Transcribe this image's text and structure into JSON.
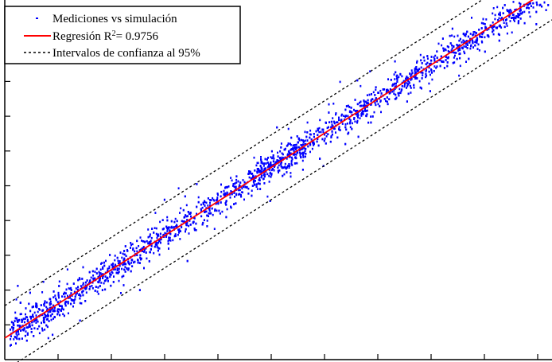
{
  "chart_data": {
    "type": "scatter",
    "title": "",
    "xlabel": "",
    "ylabel": "",
    "xlim": [
      0,
      1
    ],
    "ylim": [
      0,
      1
    ],
    "x_tick_count": 10,
    "y_tick_count": 10,
    "grid": false,
    "legend_position": "top-left",
    "series": [
      {
        "name": "Mediciones vs simulación",
        "marker": "point",
        "color": "#0000ff",
        "point_count": 3000,
        "points": []
      },
      {
        "name": "Regresión R² = 0.9756",
        "name_prefix": "Regresión R",
        "name_sup": "2",
        "name_suffix": "= 0.9756",
        "line_style": "solid",
        "color": "#ff0000",
        "slope": 0.975,
        "intercept": 0.06
      },
      {
        "name": "Intervalos de confianza al 95%",
        "line_style": "dashed",
        "color": "#000000",
        "offset": 0.09
      }
    ]
  }
}
